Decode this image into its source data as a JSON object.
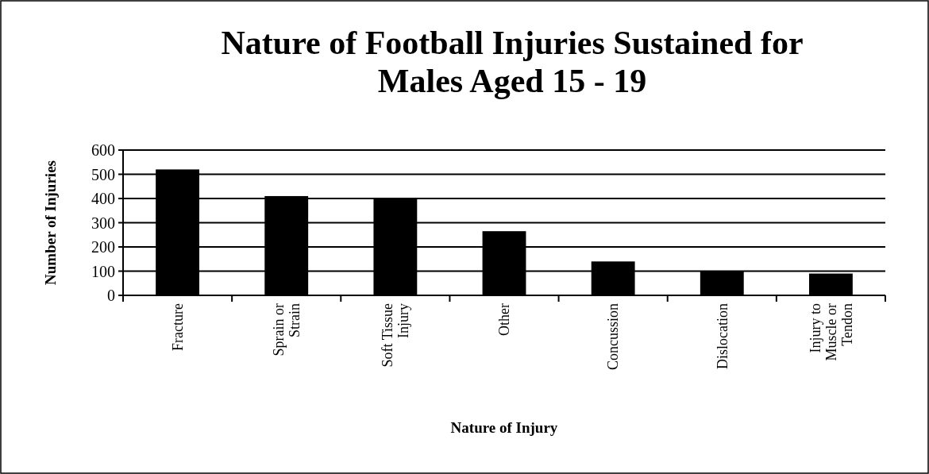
{
  "chart_data": {
    "type": "bar",
    "title": "Nature of Football Injuries Sustained for Males Aged 15 - 19",
    "xlabel": "Nature of Injury",
    "ylabel": "Number of Injuries",
    "categories": [
      "Fracture",
      "Sprain or Strain",
      "Soft Tissue Injury",
      "Other",
      "Concussion",
      "Dislocation",
      "Injury to Muscle or Tendon"
    ],
    "values": [
      520,
      410,
      400,
      265,
      140,
      100,
      90
    ],
    "color": "#000000",
    "ylim": [
      0,
      600
    ],
    "yticks": [
      0,
      100,
      200,
      300,
      400,
      500,
      600
    ],
    "grid": "y"
  }
}
